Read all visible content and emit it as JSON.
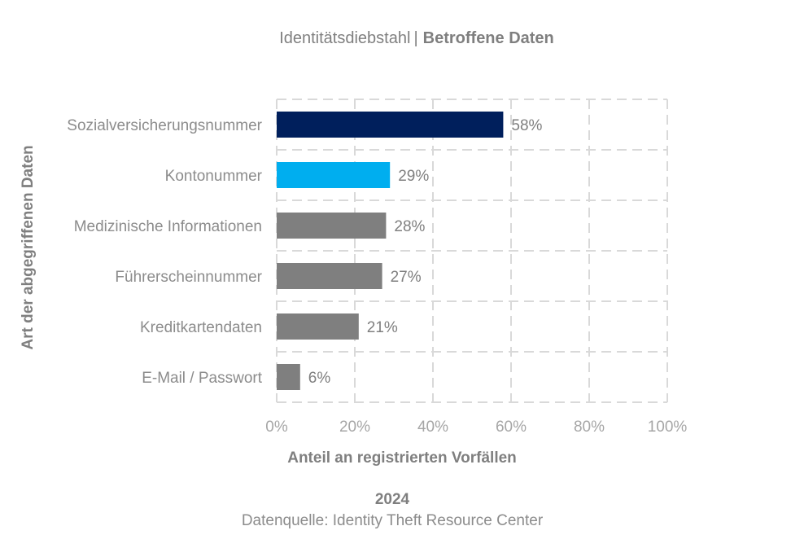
{
  "chart_data": {
    "type": "bar",
    "orientation": "horizontal",
    "title": "Identitätsdiebstahl",
    "title_separator": "|",
    "subtitle": "Betroffene Daten",
    "categories": [
      "Sozialversicherungsnummer",
      "Kontonummer",
      "Medizinische Informationen",
      "Führerscheinnummer",
      "Kreditkartendaten",
      "E-Mail / Passwort"
    ],
    "values": [
      58,
      29,
      28,
      27,
      21,
      6
    ],
    "value_labels": [
      "58%",
      "29%",
      "28%",
      "27%",
      "21%",
      "6%"
    ],
    "bar_colors": [
      "#001f5c",
      "#00aeef",
      "#7f7f7f",
      "#7f7f7f",
      "#7f7f7f",
      "#7f7f7f"
    ],
    "xlim": [
      0,
      100
    ],
    "xticks": [
      0,
      20,
      40,
      60,
      80,
      100
    ],
    "xtick_labels": [
      "0%",
      "20%",
      "40%",
      "60%",
      "80%",
      "100%"
    ],
    "xlabel": "Anteil an registrierten Vorfällen",
    "ylabel": "Art der abgegriffenen Daten",
    "grid": true,
    "year": "2024",
    "source": "Datenquelle: Identity Theft Resource Center"
  }
}
